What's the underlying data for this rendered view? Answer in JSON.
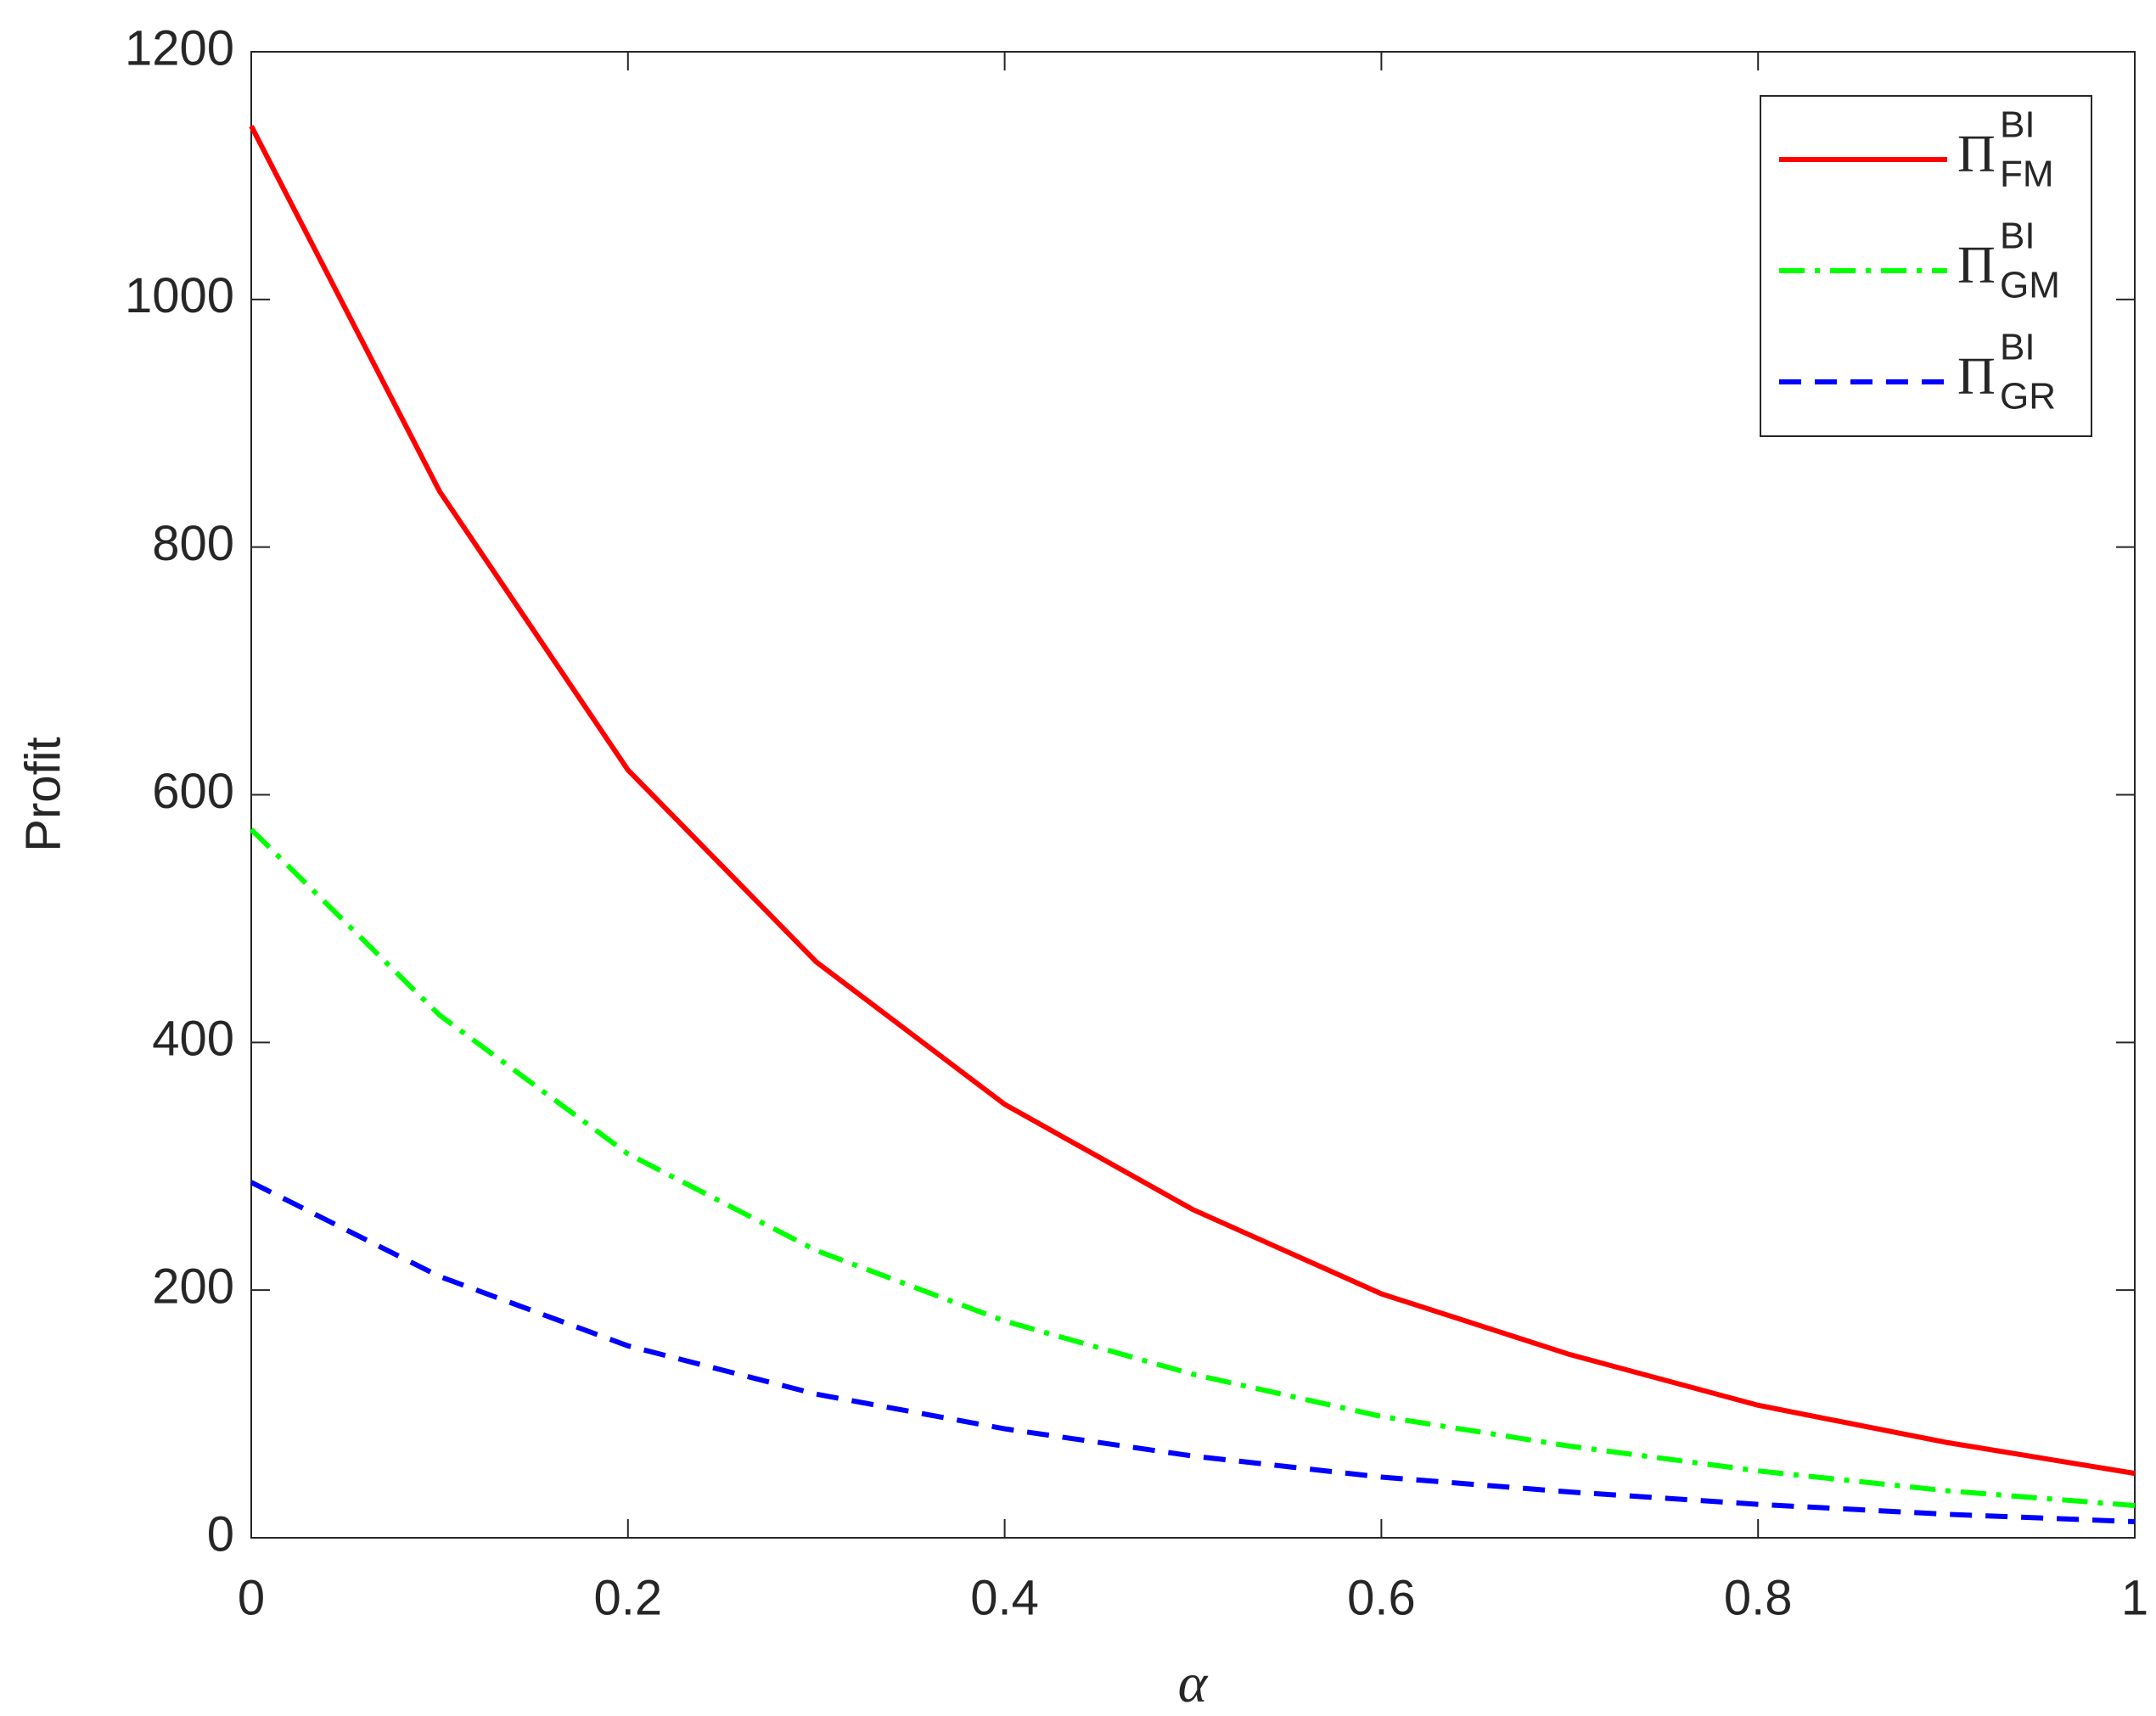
{
  "chart_data": {
    "type": "line",
    "x_label": "α",
    "y_label": "Profit",
    "x": [
      0,
      0.1,
      0.2,
      0.3,
      0.4,
      0.5,
      0.6,
      0.7,
      0.8,
      0.9,
      1
    ],
    "series": [
      {
        "name": "Π",
        "name_sup": "BI",
        "name_sub": "FM",
        "color": "#ff0000",
        "linestyle": "solid",
        "values": [
          1140,
          845,
          620,
          465,
          350,
          265,
          197,
          148,
          107,
          77,
          52
        ]
      },
      {
        "name": "Π",
        "name_sup": "BI",
        "name_sub": "GM",
        "color": "#00ff00",
        "linestyle": "dashdot",
        "values": [
          572,
          422,
          310,
          232,
          175,
          132,
          98,
          74,
          54,
          38,
          26
        ]
      },
      {
        "name": "Π",
        "name_sup": "BI",
        "name_sub": "GR",
        "color": "#0000ff",
        "linestyle": "dashed",
        "values": [
          287,
          211,
          155,
          116,
          88,
          66,
          49,
          37,
          27,
          19,
          13
        ]
      }
    ],
    "xlim": [
      0,
      1
    ],
    "xticks": [
      0,
      0.2,
      0.4,
      0.6,
      0.8,
      1
    ],
    "ylim": [
      0,
      1200
    ],
    "yticks": [
      0,
      200,
      400,
      600,
      800,
      1000,
      1200
    ],
    "grid": false,
    "legend_position": "upper right"
  }
}
